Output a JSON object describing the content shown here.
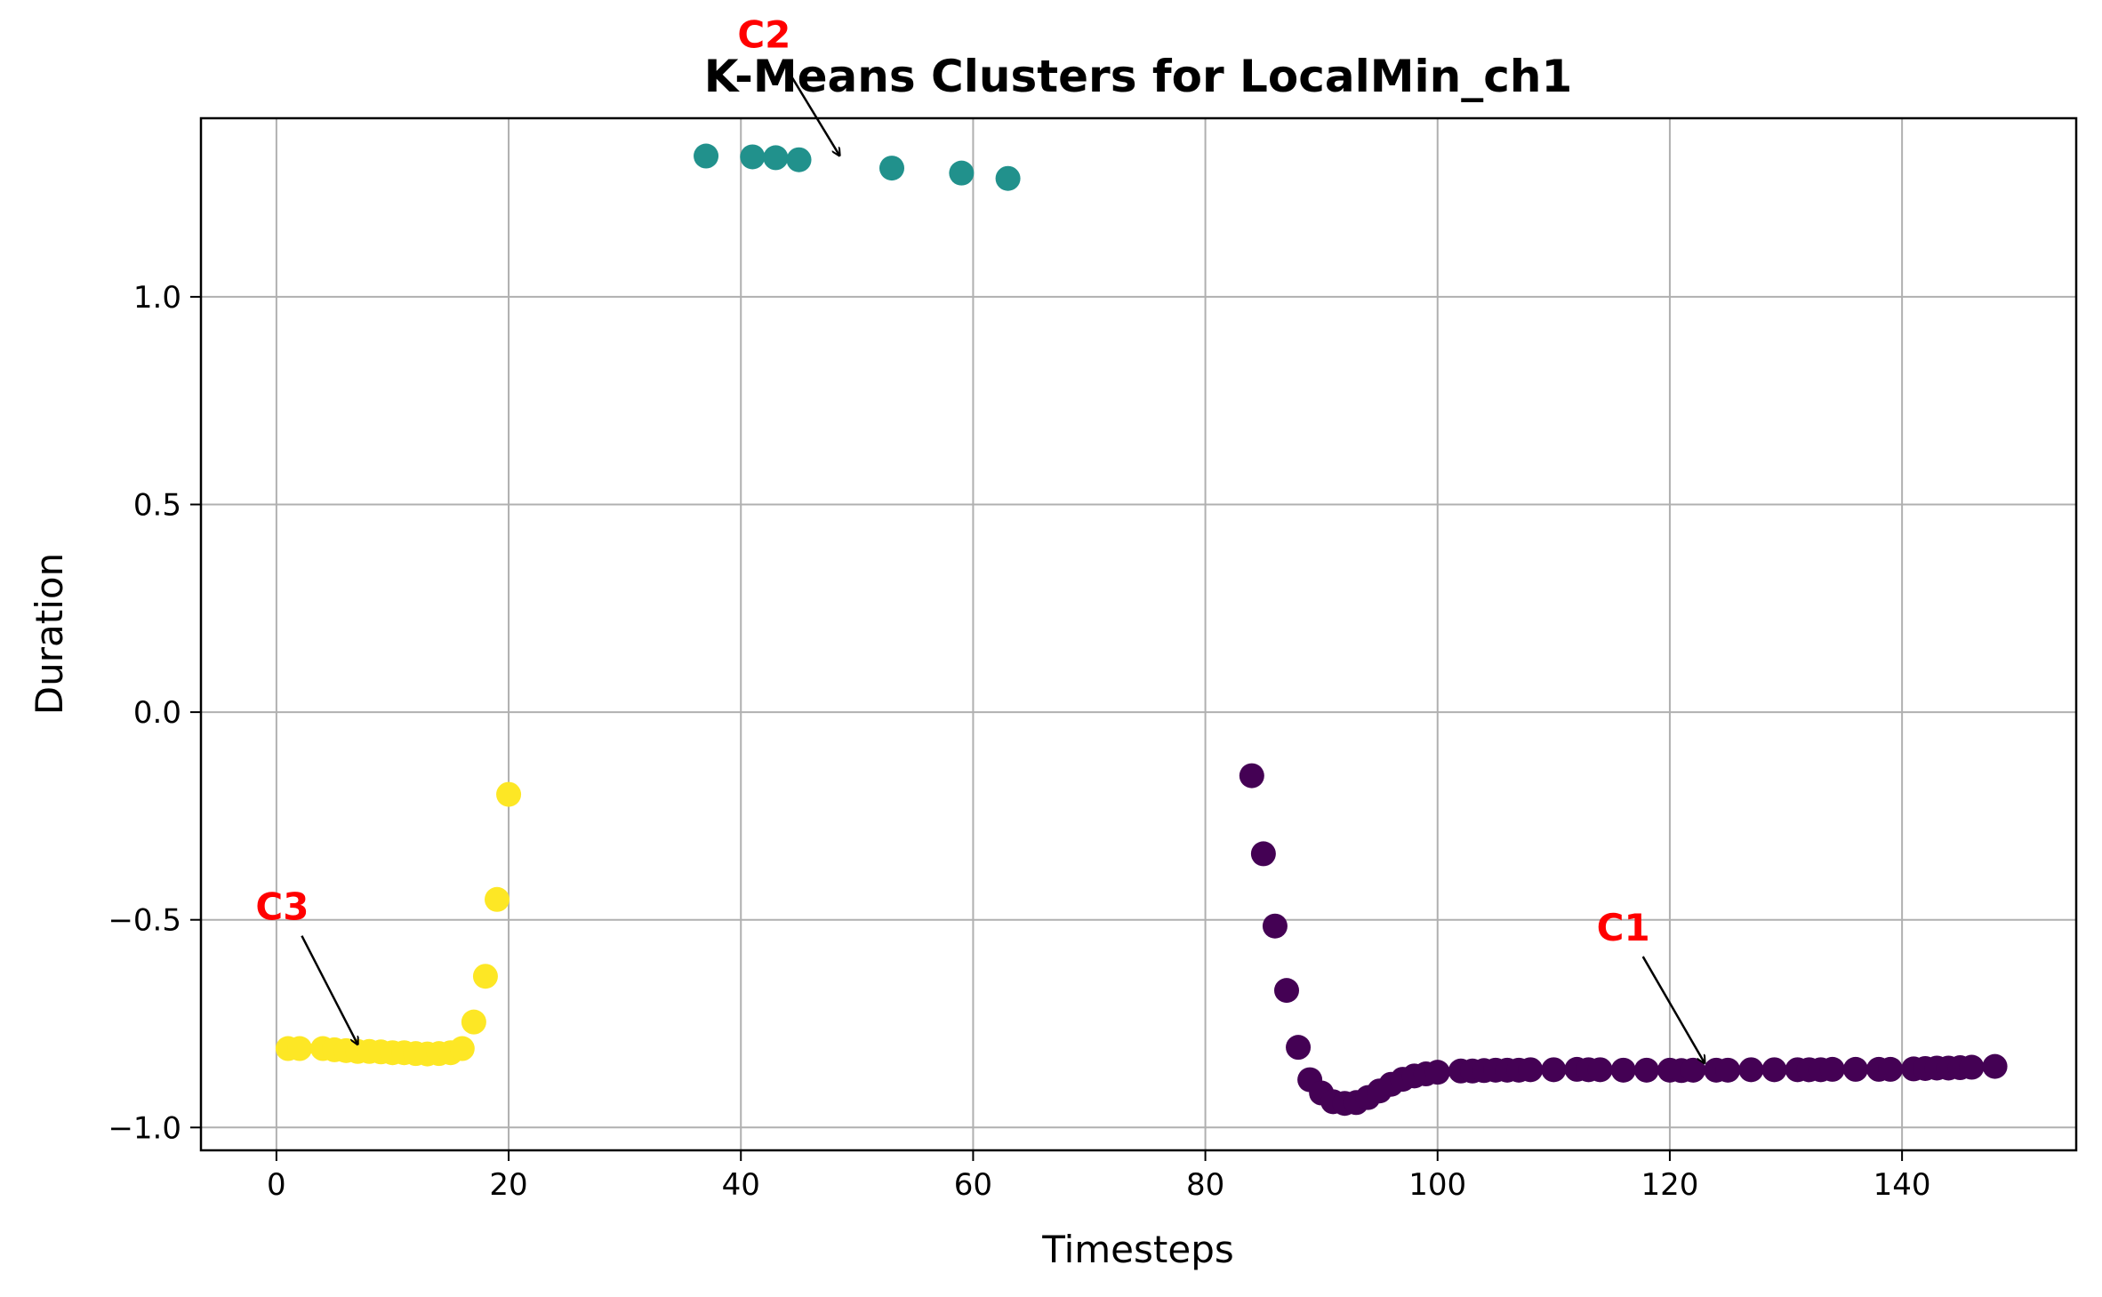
{
  "chart_data": {
    "type": "scatter",
    "title": "K-Means Clusters for LocalMin_ch1",
    "xlabel": "Timesteps",
    "ylabel": "Duration",
    "xlim": [
      -6.5,
      155
    ],
    "ylim": [
      -1.055,
      1.43
    ],
    "xticks": [
      0,
      20,
      40,
      60,
      80,
      100,
      120,
      140
    ],
    "xtick_labels": [
      "0",
      "20",
      "40",
      "60",
      "80",
      "100",
      "120",
      "140"
    ],
    "yticks": [
      -1.0,
      -0.5,
      0.0,
      0.5,
      1.0
    ],
    "ytick_labels": [
      "−1.0",
      "−0.5",
      "0.0",
      "0.5",
      "1.0"
    ],
    "grid": true,
    "series": [
      {
        "cluster": "C3",
        "color": "#fde725",
        "x": [
          1,
          2,
          4,
          5,
          6,
          7,
          8,
          9,
          10,
          11,
          12,
          13,
          14,
          15,
          16,
          17,
          18,
          19,
          20
        ],
        "y": [
          -0.81,
          -0.81,
          -0.81,
          -0.813,
          -0.815,
          -0.817,
          -0.817,
          -0.818,
          -0.82,
          -0.82,
          -0.822,
          -0.823,
          -0.822,
          -0.82,
          -0.81,
          -0.746,
          -0.636,
          -0.451,
          -0.198
        ]
      },
      {
        "cluster": "C2",
        "color": "#21918c",
        "x": [
          37,
          41,
          43,
          45,
          53,
          59,
          63
        ],
        "y": [
          1.339,
          1.337,
          1.335,
          1.33,
          1.31,
          1.298,
          1.285
        ]
      },
      {
        "cluster": "C1",
        "color": "#440154",
        "x": [
          84,
          85,
          86,
          87,
          88,
          89,
          90,
          91,
          92,
          93,
          94,
          95,
          96,
          97,
          98,
          99,
          100,
          102,
          103,
          104,
          105,
          106,
          107,
          108,
          110,
          112,
          113,
          114,
          116,
          118,
          120,
          121,
          122,
          124,
          125,
          127,
          129,
          131,
          132,
          133,
          134,
          136,
          138,
          139,
          141,
          142,
          143,
          144,
          145,
          146,
          148
        ],
        "y": [
          -0.153,
          -0.341,
          -0.515,
          -0.67,
          -0.807,
          -0.885,
          -0.917,
          -0.938,
          -0.942,
          -0.94,
          -0.928,
          -0.912,
          -0.896,
          -0.884,
          -0.876,
          -0.871,
          -0.867,
          -0.864,
          -0.864,
          -0.863,
          -0.862,
          -0.862,
          -0.862,
          -0.861,
          -0.861,
          -0.86,
          -0.861,
          -0.861,
          -0.862,
          -0.862,
          -0.862,
          -0.863,
          -0.862,
          -0.862,
          -0.862,
          -0.861,
          -0.861,
          -0.861,
          -0.861,
          -0.861,
          -0.86,
          -0.86,
          -0.86,
          -0.86,
          -0.859,
          -0.858,
          -0.857,
          -0.857,
          -0.856,
          -0.855,
          -0.853
        ]
      }
    ],
    "annotations": [
      {
        "text": "C3",
        "text_x": 0.5,
        "text_y": -0.5,
        "arrow_x": 7,
        "arrow_y": -0.8
      },
      {
        "text": "C2",
        "text_x": 42,
        "text_y": 1.6,
        "arrow_x": 48.5,
        "arrow_y": 1.34
      },
      {
        "text": "C1",
        "text_x": 116,
        "text_y": -0.55,
        "arrow_x": 123,
        "arrow_y": -0.845
      }
    ]
  }
}
